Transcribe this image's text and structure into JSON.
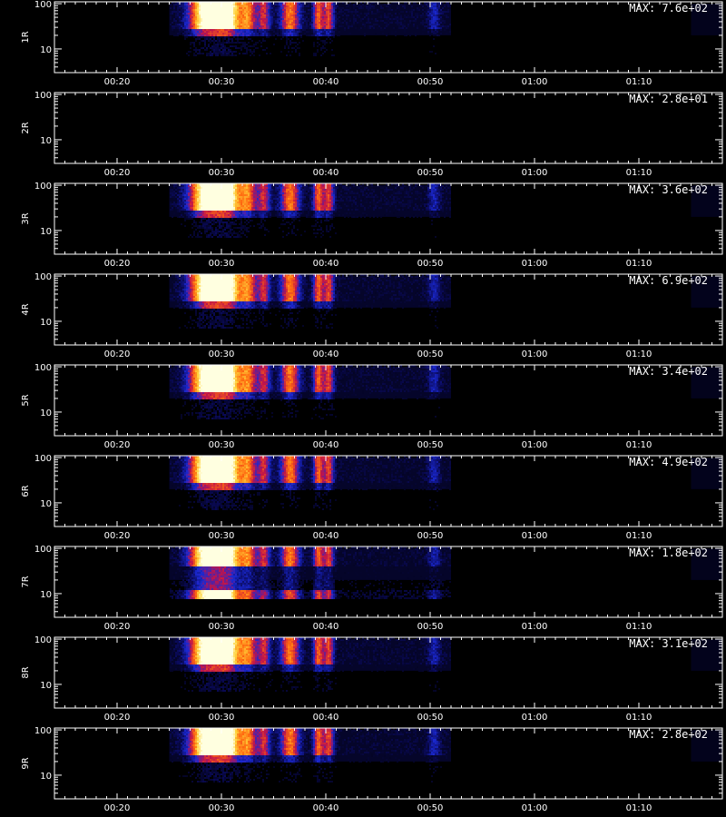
{
  "chart_data": {
    "type": "heatmap",
    "description_units": "time (hh:mm) vs height/index (log axis)",
    "x_tick_labels": [
      "00:20",
      "00:30",
      "00:40",
      "00:50",
      "01:00",
      "01:10"
    ],
    "x_tick_minutes": [
      20,
      30,
      40,
      50,
      60,
      70
    ],
    "xlim_minutes": [
      14.0,
      78.0
    ],
    "y_tick_labels": [
      "10",
      "100"
    ],
    "y_tick_values": [
      10,
      100
    ],
    "ylim": [
      3,
      110
    ],
    "y_scale": "log",
    "colormap": [
      "#000000",
      "#0a0a5a",
      "#1a28d0",
      "#c0144a",
      "#ff6a10",
      "#ffd23a",
      "#ffffe0"
    ],
    "panels": [
      {
        "label": "1R",
        "max_text": "MAX: 7.6e+02",
        "active": true
      },
      {
        "label": "2R",
        "max_text": "MAX: 2.8e+01",
        "active": false
      },
      {
        "label": "3R",
        "max_text": "MAX: 3.6e+02",
        "active": true
      },
      {
        "label": "4R",
        "max_text": "MAX: 6.9e+02",
        "active": true
      },
      {
        "label": "5R",
        "max_text": "MAX: 3.4e+02",
        "active": true
      },
      {
        "label": "6R",
        "max_text": "MAX: 4.9e+02",
        "active": true
      },
      {
        "label": "7R",
        "max_text": "MAX: 1.8e+02",
        "active": true
      },
      {
        "label": "8R",
        "max_text": "MAX: 3.1e+02",
        "active": true
      },
      {
        "label": "9R",
        "max_text": "MAX: 2.8e+02",
        "active": true
      }
    ],
    "blobs_minutes": [
      {
        "t": 28.5,
        "width": 1.6,
        "intensity": 1.0
      },
      {
        "t": 30.5,
        "width": 1.3,
        "intensity": 0.95
      },
      {
        "t": 32.5,
        "width": 0.8,
        "intensity": 0.55
      },
      {
        "t": 34.0,
        "width": 0.6,
        "intensity": 0.45
      },
      {
        "t": 36.5,
        "width": 0.9,
        "intensity": 0.6
      },
      {
        "t": 39.2,
        "width": 0.5,
        "intensity": 0.55
      },
      {
        "t": 40.2,
        "width": 0.5,
        "intensity": 0.5
      },
      {
        "t": 50.3,
        "width": 0.6,
        "intensity": 0.2
      }
    ]
  }
}
